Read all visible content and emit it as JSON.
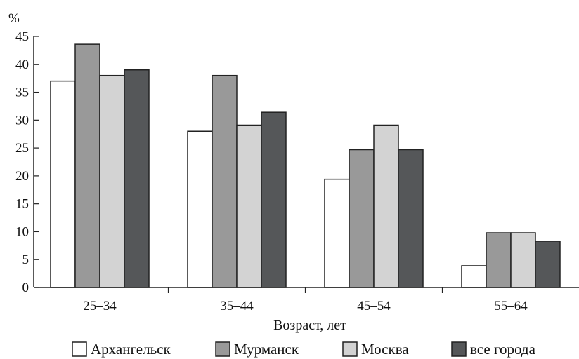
{
  "chart_data": {
    "type": "bar",
    "unit_label": "%",
    "xlabel": "Возраст, лет",
    "ylabel": "",
    "ylim": [
      0,
      45
    ],
    "yticks": [
      0,
      5,
      10,
      15,
      20,
      25,
      30,
      35,
      40,
      45
    ],
    "categories": [
      "25–34",
      "35–44",
      "45–54",
      "55–64"
    ],
    "legend_position": "bottom",
    "grid": false,
    "series": [
      {
        "name": "Архангельск",
        "color": "#ffffff",
        "values": [
          37,
          28,
          19.4,
          3.9
        ]
      },
      {
        "name": "Мурманск",
        "color": "#999999",
        "values": [
          43.6,
          38,
          24.7,
          9.8
        ]
      },
      {
        "name": "Москва",
        "color": "#d3d3d3",
        "values": [
          38,
          29.1,
          29.1,
          9.8
        ]
      },
      {
        "name": "все города",
        "color": "#555759",
        "values": [
          39,
          31.4,
          24.7,
          8.3
        ]
      }
    ]
  }
}
